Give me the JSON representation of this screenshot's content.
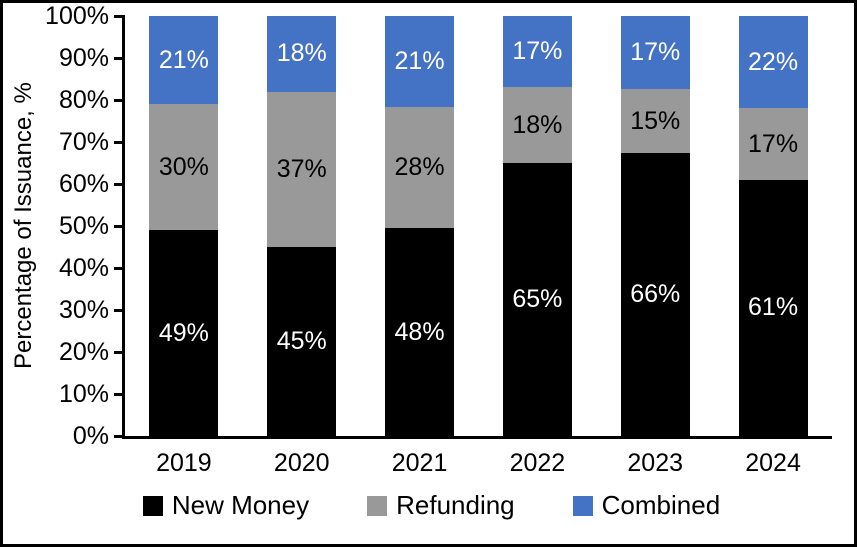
{
  "chart_data": {
    "type": "bar",
    "stacked": true,
    "stacked_to_100": true,
    "title": "",
    "xlabel": "",
    "ylabel": "Percentage of Issuance, %",
    "ylim": [
      0,
      100
    ],
    "y_ticks": [
      "0%",
      "10%",
      "20%",
      "30%",
      "40%",
      "50%",
      "60%",
      "70%",
      "80%",
      "90%",
      "100%"
    ],
    "grid": false,
    "legend_position": "bottom",
    "value_suffix": "%",
    "categories": [
      "2019",
      "2020",
      "2021",
      "2022",
      "2023",
      "2024"
    ],
    "series": [
      {
        "name": "New Money",
        "color": "#000000",
        "label_color": "#FFFFFF",
        "values": [
          49,
          45,
          48,
          65,
          66,
          61
        ]
      },
      {
        "name": "Refunding",
        "color": "#999999",
        "label_color": "#000000",
        "values": [
          30,
          37,
          28,
          18,
          15,
          17
        ]
      },
      {
        "name": "Combined",
        "color": "#4472C4",
        "label_color": "#FFFFFF",
        "values": [
          21,
          18,
          21,
          17,
          17,
          22
        ]
      }
    ]
  }
}
